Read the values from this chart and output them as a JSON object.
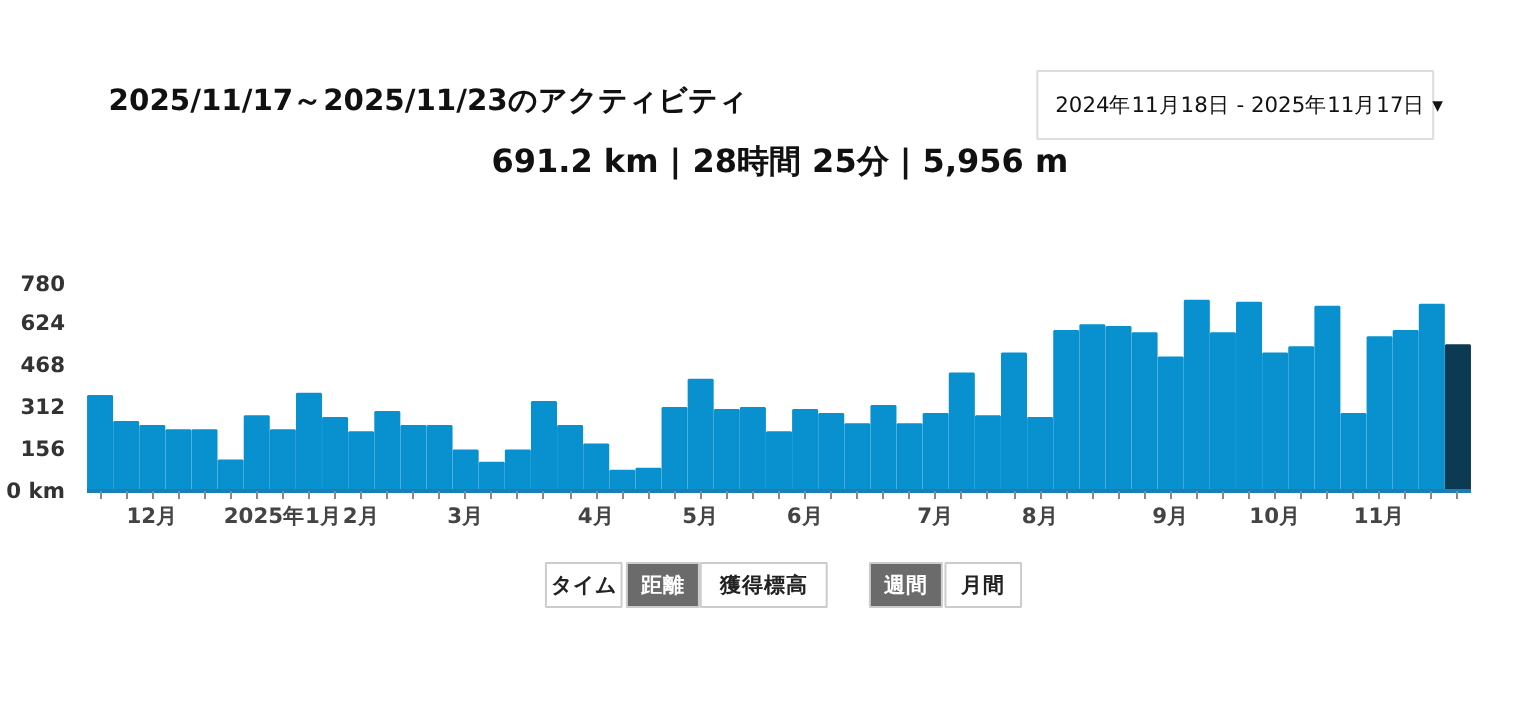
{
  "chart_data": {
    "type": "bar",
    "title": "2025/11/17～2025/11/23のアクティビティ",
    "subtitle": "691.2 km | 28時間 25分 | 5,956 m",
    "annotations": [
      "2024年11月18日 - 2025年11月17日 ▾",
      "タイム",
      "距離",
      "獲得標高",
      "週間",
      "月間"
    ],
    "categories": [
      null,
      null,
      "12月",
      null,
      null,
      null,
      null,
      "2025年1月",
      null,
      null,
      "2月",
      null,
      null,
      null,
      "3月",
      null,
      null,
      null,
      null,
      "4月",
      null,
      null,
      null,
      "5月",
      null,
      null,
      null,
      "6月",
      null,
      null,
      null,
      null,
      "7月",
      null,
      null,
      null,
      "8月",
      null,
      null,
      null,
      null,
      "9月",
      null,
      null,
      null,
      "10月",
      null,
      null,
      null,
      "11月",
      null,
      null,
      null
    ],
    "values": [
      353,
      256,
      241,
      226,
      226,
      113,
      278,
      226,
      361,
      271,
      218,
      293,
      241,
      241,
      150,
      105,
      150,
      331,
      241,
      173,
      75,
      83,
      308,
      413,
      301,
      308,
      218,
      301,
      286,
      248,
      316,
      248,
      286,
      436,
      278,
      511,
      271,
      594,
      616,
      609,
      586,
      496,
      707,
      586,
      699,
      511,
      534,
      684,
      286,
      571,
      594,
      692,
      541
    ],
    "colors": [
      "#0890cf",
      "#0890cf",
      "#0890cf",
      "#0890cf",
      "#0890cf",
      "#0890cf",
      "#0890cf",
      "#0890cf",
      "#0890cf",
      "#0890cf",
      "#0890cf",
      "#0890cf",
      "#0890cf",
      "#0890cf",
      "#0890cf",
      "#0890cf",
      "#0890cf",
      "#0890cf",
      "#0890cf",
      "#0890cf",
      "#0890cf",
      "#0890cf",
      "#0890cf",
      "#0890cf",
      "#0890cf",
      "#0890cf",
      "#0890cf",
      "#0890cf",
      "#0890cf",
      "#0890cf",
      "#0890cf",
      "#0890cf",
      "#0890cf",
      "#0890cf",
      "#0890cf",
      "#0890cf",
      "#0890cf",
      "#0890cf",
      "#0890cf",
      "#0890cf",
      "#0890cf",
      "#0890cf",
      "#0890cf",
      "#0890cf",
      "#0890cf",
      "#0890cf",
      "#0890cf",
      "#0890cf",
      "#0890cf",
      "#0890cf",
      "#0890cf",
      "#0890cf",
      "#0b3a52"
    ],
    "ylim": [
      0,
      780
    ],
    "yticks": [
      {
        "value": 0,
        "label": "0 km"
      },
      156,
      312,
      468,
      624,
      780
    ],
    "grid": false
  }
}
